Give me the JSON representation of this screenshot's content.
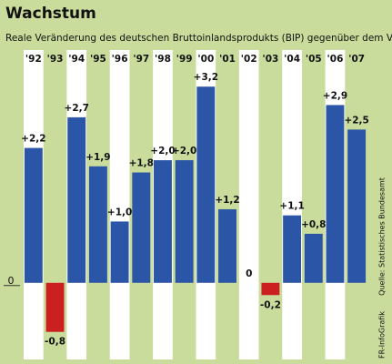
{
  "chart_data": {
    "type": "bar",
    "title": "Wachstum",
    "subtitle": "Reale Veränderung des deutschen Bruttoinlandsprodukts (BIP) gegenüber dem Vorjahr in %",
    "categories": [
      "'92",
      "'93",
      "'94",
      "'95",
      "'96",
      "'97",
      "'98",
      "'99",
      "'00",
      "'01",
      "'02",
      "'03",
      "'04",
      "'05",
      "'06",
      "'07"
    ],
    "values": [
      2.2,
      -0.8,
      2.7,
      1.9,
      1.0,
      1.8,
      2.0,
      2.0,
      3.2,
      1.2,
      0,
      -0.2,
      1.1,
      0.8,
      2.9,
      2.5
    ],
    "value_labels": [
      "+2,2",
      "-0,8",
      "+2,7",
      "+1,9",
      "+1,0",
      "+1,8",
      "+2,0",
      "+2,0",
      "+3,2",
      "+1,2",
      "0",
      "-0,2",
      "+1,1",
      "+0,8",
      "+2,9",
      "+2,5"
    ],
    "color": "#2b55a6",
    "negative_color": "#cc2020",
    "ylim": [
      -1.25,
      3.5
    ],
    "yticks": [
      0
    ],
    "source": "Quelle: Statistisches Bundesamt",
    "credit": "FR-InfoGrafik"
  }
}
